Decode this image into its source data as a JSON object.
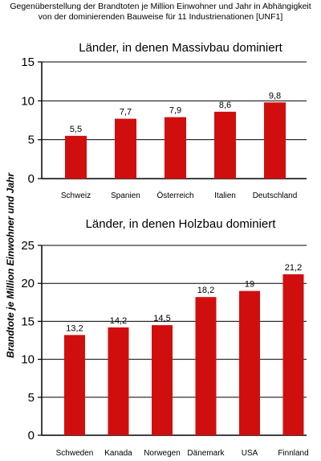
{
  "header": {
    "line1": "Gegenüberstellung der Brandtoten je Million Einwohner und Jahr in Abhängigkeit",
    "line2": "von der dominierenden Bauweise für 11 Industrienationen [UNF1]"
  },
  "colors": {
    "bar": "#d10e0e",
    "axis": "#000000",
    "grid": "#000000"
  },
  "chart_data": [
    {
      "type": "bar",
      "title": "Länder, in denen Massivbau dominiert",
      "categories": [
        "Schweiz",
        "Spanien",
        "Österreich",
        "Italien",
        "Deutschland"
      ],
      "values": [
        5.5,
        7.7,
        7.9,
        8.6,
        9.8
      ],
      "value_labels": [
        "5,5",
        "7,7",
        "7,9",
        "8,6",
        "9,8"
      ],
      "ylabel": "Brandtote je Million Einwohner und Jahr",
      "xlabel": "",
      "ylim": [
        0,
        15
      ],
      "yticks": [
        0,
        5,
        10,
        15
      ],
      "grid": true
    },
    {
      "type": "bar",
      "title": "Länder, in denen Holzbau dominiert",
      "categories": [
        "Schweden",
        "Kanada",
        "Norwegen",
        "Dänemark",
        "USA",
        "Finnland"
      ],
      "values": [
        13.2,
        14.2,
        14.5,
        18.2,
        19,
        21.2
      ],
      "value_labels": [
        "13,2",
        "14,2",
        "14,5",
        "18,2",
        "19",
        "21,2"
      ],
      "ylabel": "Brandtote je Million Einwohner und Jahr",
      "xlabel": "",
      "ylim": [
        0,
        25
      ],
      "yticks": [
        0,
        5,
        10,
        15,
        20,
        25
      ],
      "grid": true
    }
  ]
}
